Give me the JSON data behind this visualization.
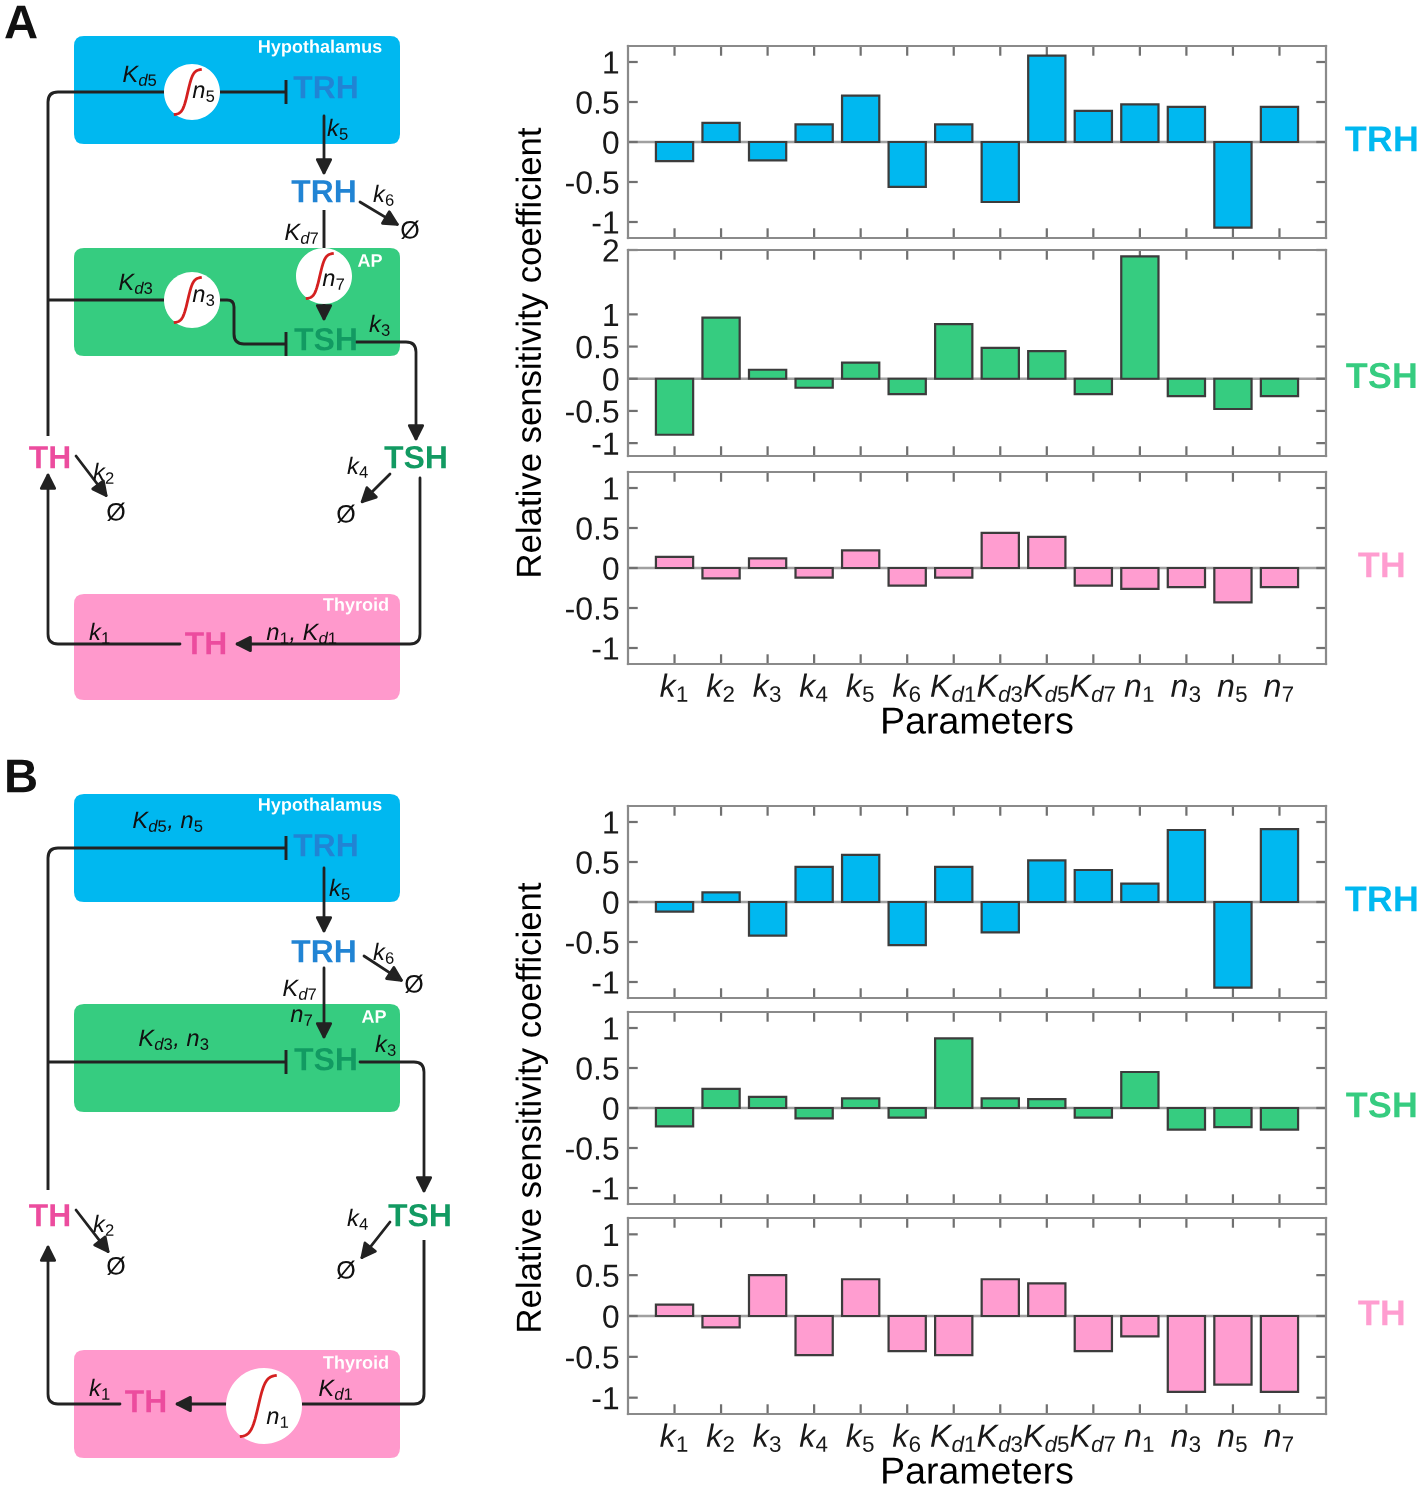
{
  "chart_data": [
    {
      "type": "other",
      "title": "A",
      "annotations": [
        "Hypothalamus",
        "K$_{d5}$",
        "n$_{5}$",
        "TRH",
        "k$_{5}$",
        "TRH",
        "k$_{6}$",
        "Ø",
        "K$_{d7}$",
        "AP",
        "n$_{7}$",
        "K$_{d3}$",
        "n$_{3}$",
        "TSH",
        "k$_{3}$",
        "TH",
        "k$_{2}$",
        "Ø",
        "TSH",
        "k$_{4}$",
        "Ø",
        "Thyroid",
        "k$_{1}$",
        "TH",
        "n$_{1}$, K$_{d1}$"
      ]
    },
    {
      "type": "bar",
      "categories": [
        null,
        null,
        null,
        null,
        null,
        null,
        null,
        null,
        null,
        null,
        null,
        null,
        null,
        null
      ],
      "series": [
        {
          "name": "TRH",
          "color": "#00b8f0",
          "values": [
            -0.24,
            0.24,
            -0.23,
            0.22,
            0.58,
            -0.56,
            0.22,
            -0.75,
            1.08,
            0.39,
            0.47,
            0.44,
            -1.07,
            0.44
          ]
        }
      ],
      "ylim": [
        -1.2,
        1.2
      ],
      "yticks": [
        -1,
        -0.5,
        0,
        0.5,
        1
      ],
      "tick_labels": "y"
    },
    {
      "type": "bar",
      "categories": [
        null,
        null,
        null,
        null,
        null,
        null,
        null,
        null,
        null,
        null,
        null,
        null,
        null,
        null
      ],
      "series": [
        {
          "name": "TSH",
          "color": "#36cc80",
          "values": [
            -0.87,
            0.95,
            0.14,
            -0.14,
            0.25,
            -0.24,
            0.85,
            0.48,
            0.43,
            -0.24,
            1.9,
            -0.27,
            -0.47,
            -0.27
          ]
        }
      ],
      "ylabel": "Relative sensitivity coefficient",
      "ylim": [
        -1.2,
        2
      ],
      "yticks": [
        -1,
        -0.5,
        0,
        0.5,
        1,
        2
      ],
      "tick_labels": "y"
    },
    {
      "type": "bar",
      "categories": [
        "k$_{1}$",
        "k$_{2}$",
        "k$_{3}$",
        "k$_{4}$",
        "k$_{5}$",
        "k$_{6}$",
        "K$_{d1}$",
        "K$_{d3}$",
        "K$_{d5}$",
        "K$_{d7}$",
        "n$_{1}$",
        "n$_{3}$",
        "n$_{5}$",
        "n$_{7}$"
      ],
      "series": [
        {
          "name": "TH",
          "color": "#ff9dd0",
          "values": [
            0.14,
            -0.13,
            0.12,
            -0.12,
            0.22,
            -0.22,
            -0.12,
            0.44,
            0.39,
            -0.22,
            -0.26,
            -0.24,
            -0.43,
            -0.24
          ]
        }
      ],
      "xlabel": "Parameters",
      "ylim": [
        -1.2,
        1.2
      ],
      "yticks": [
        -1,
        -0.5,
        0,
        0.5,
        1
      ]
    },
    {
      "type": "other",
      "title": "B",
      "annotations": [
        "Hypothalamus",
        "K$_{d5}$, n$_{5}$",
        "TRH",
        "k$_{5}$",
        "TRH",
        "k$_{6}$",
        "Ø",
        "K$_{d7}$",
        "n$_{7}$",
        "AP",
        "K$_{d3}$, n$_{3}$",
        "TSH",
        "k$_{3}$",
        "TH",
        "k$_{2}$",
        "Ø",
        "TSH",
        "k$_{4}$",
        "Ø",
        "Thyroid",
        "k$_{1}$",
        "TH",
        "n$_{1}$",
        "K$_{d1}$"
      ]
    },
    {
      "type": "bar",
      "categories": [
        null,
        null,
        null,
        null,
        null,
        null,
        null,
        null,
        null,
        null,
        null,
        null,
        null,
        null
      ],
      "series": [
        {
          "name": "TRH",
          "color": "#00b8f0",
          "values": [
            -0.12,
            0.12,
            -0.42,
            0.44,
            0.59,
            -0.54,
            0.44,
            -0.38,
            0.52,
            0.4,
            0.23,
            0.9,
            -1.07,
            0.91
          ]
        }
      ],
      "ylim": [
        -1.2,
        1.2
      ],
      "yticks": [
        -1,
        -0.5,
        0,
        0.5,
        1
      ],
      "tick_labels": "y"
    },
    {
      "type": "bar",
      "categories": [
        null,
        null,
        null,
        null,
        null,
        null,
        null,
        null,
        null,
        null,
        null,
        null,
        null,
        null
      ],
      "series": [
        {
          "name": "TSH",
          "color": "#36cc80",
          "values": [
            -0.23,
            0.24,
            0.14,
            -0.13,
            0.12,
            -0.12,
            0.87,
            0.12,
            0.11,
            -0.12,
            0.45,
            -0.27,
            -0.24,
            -0.27
          ]
        }
      ],
      "ylabel": "Relative sensitivity coefficient",
      "ylim": [
        -1.2,
        1.2
      ],
      "yticks": [
        -1,
        -0.5,
        0,
        0.5,
        1
      ],
      "tick_labels": "y"
    },
    {
      "type": "bar",
      "categories": [
        "k$_{1}$",
        "k$_{2}$",
        "k$_{3}$",
        "k$_{4}$",
        "k$_{5}$",
        "k$_{6}$",
        "K$_{d1}$",
        "K$_{d3}$",
        "K$_{d5}$",
        "K$_{d7}$",
        "n$_{1}$",
        "n$_{3}$",
        "n$_{5}$",
        "n$_{7}$"
      ],
      "series": [
        {
          "name": "TH",
          "color": "#ff9dd0",
          "values": [
            0.14,
            -0.14,
            0.5,
            -0.48,
            0.45,
            -0.43,
            -0.48,
            0.45,
            0.4,
            -0.43,
            -0.25,
            -0.93,
            -0.84,
            -0.93
          ]
        }
      ],
      "xlabel": "Parameters",
      "ylim": [
        -1.2,
        1.2
      ],
      "yticks": [
        -1,
        -0.5,
        0,
        0.5,
        1
      ]
    }
  ]
}
